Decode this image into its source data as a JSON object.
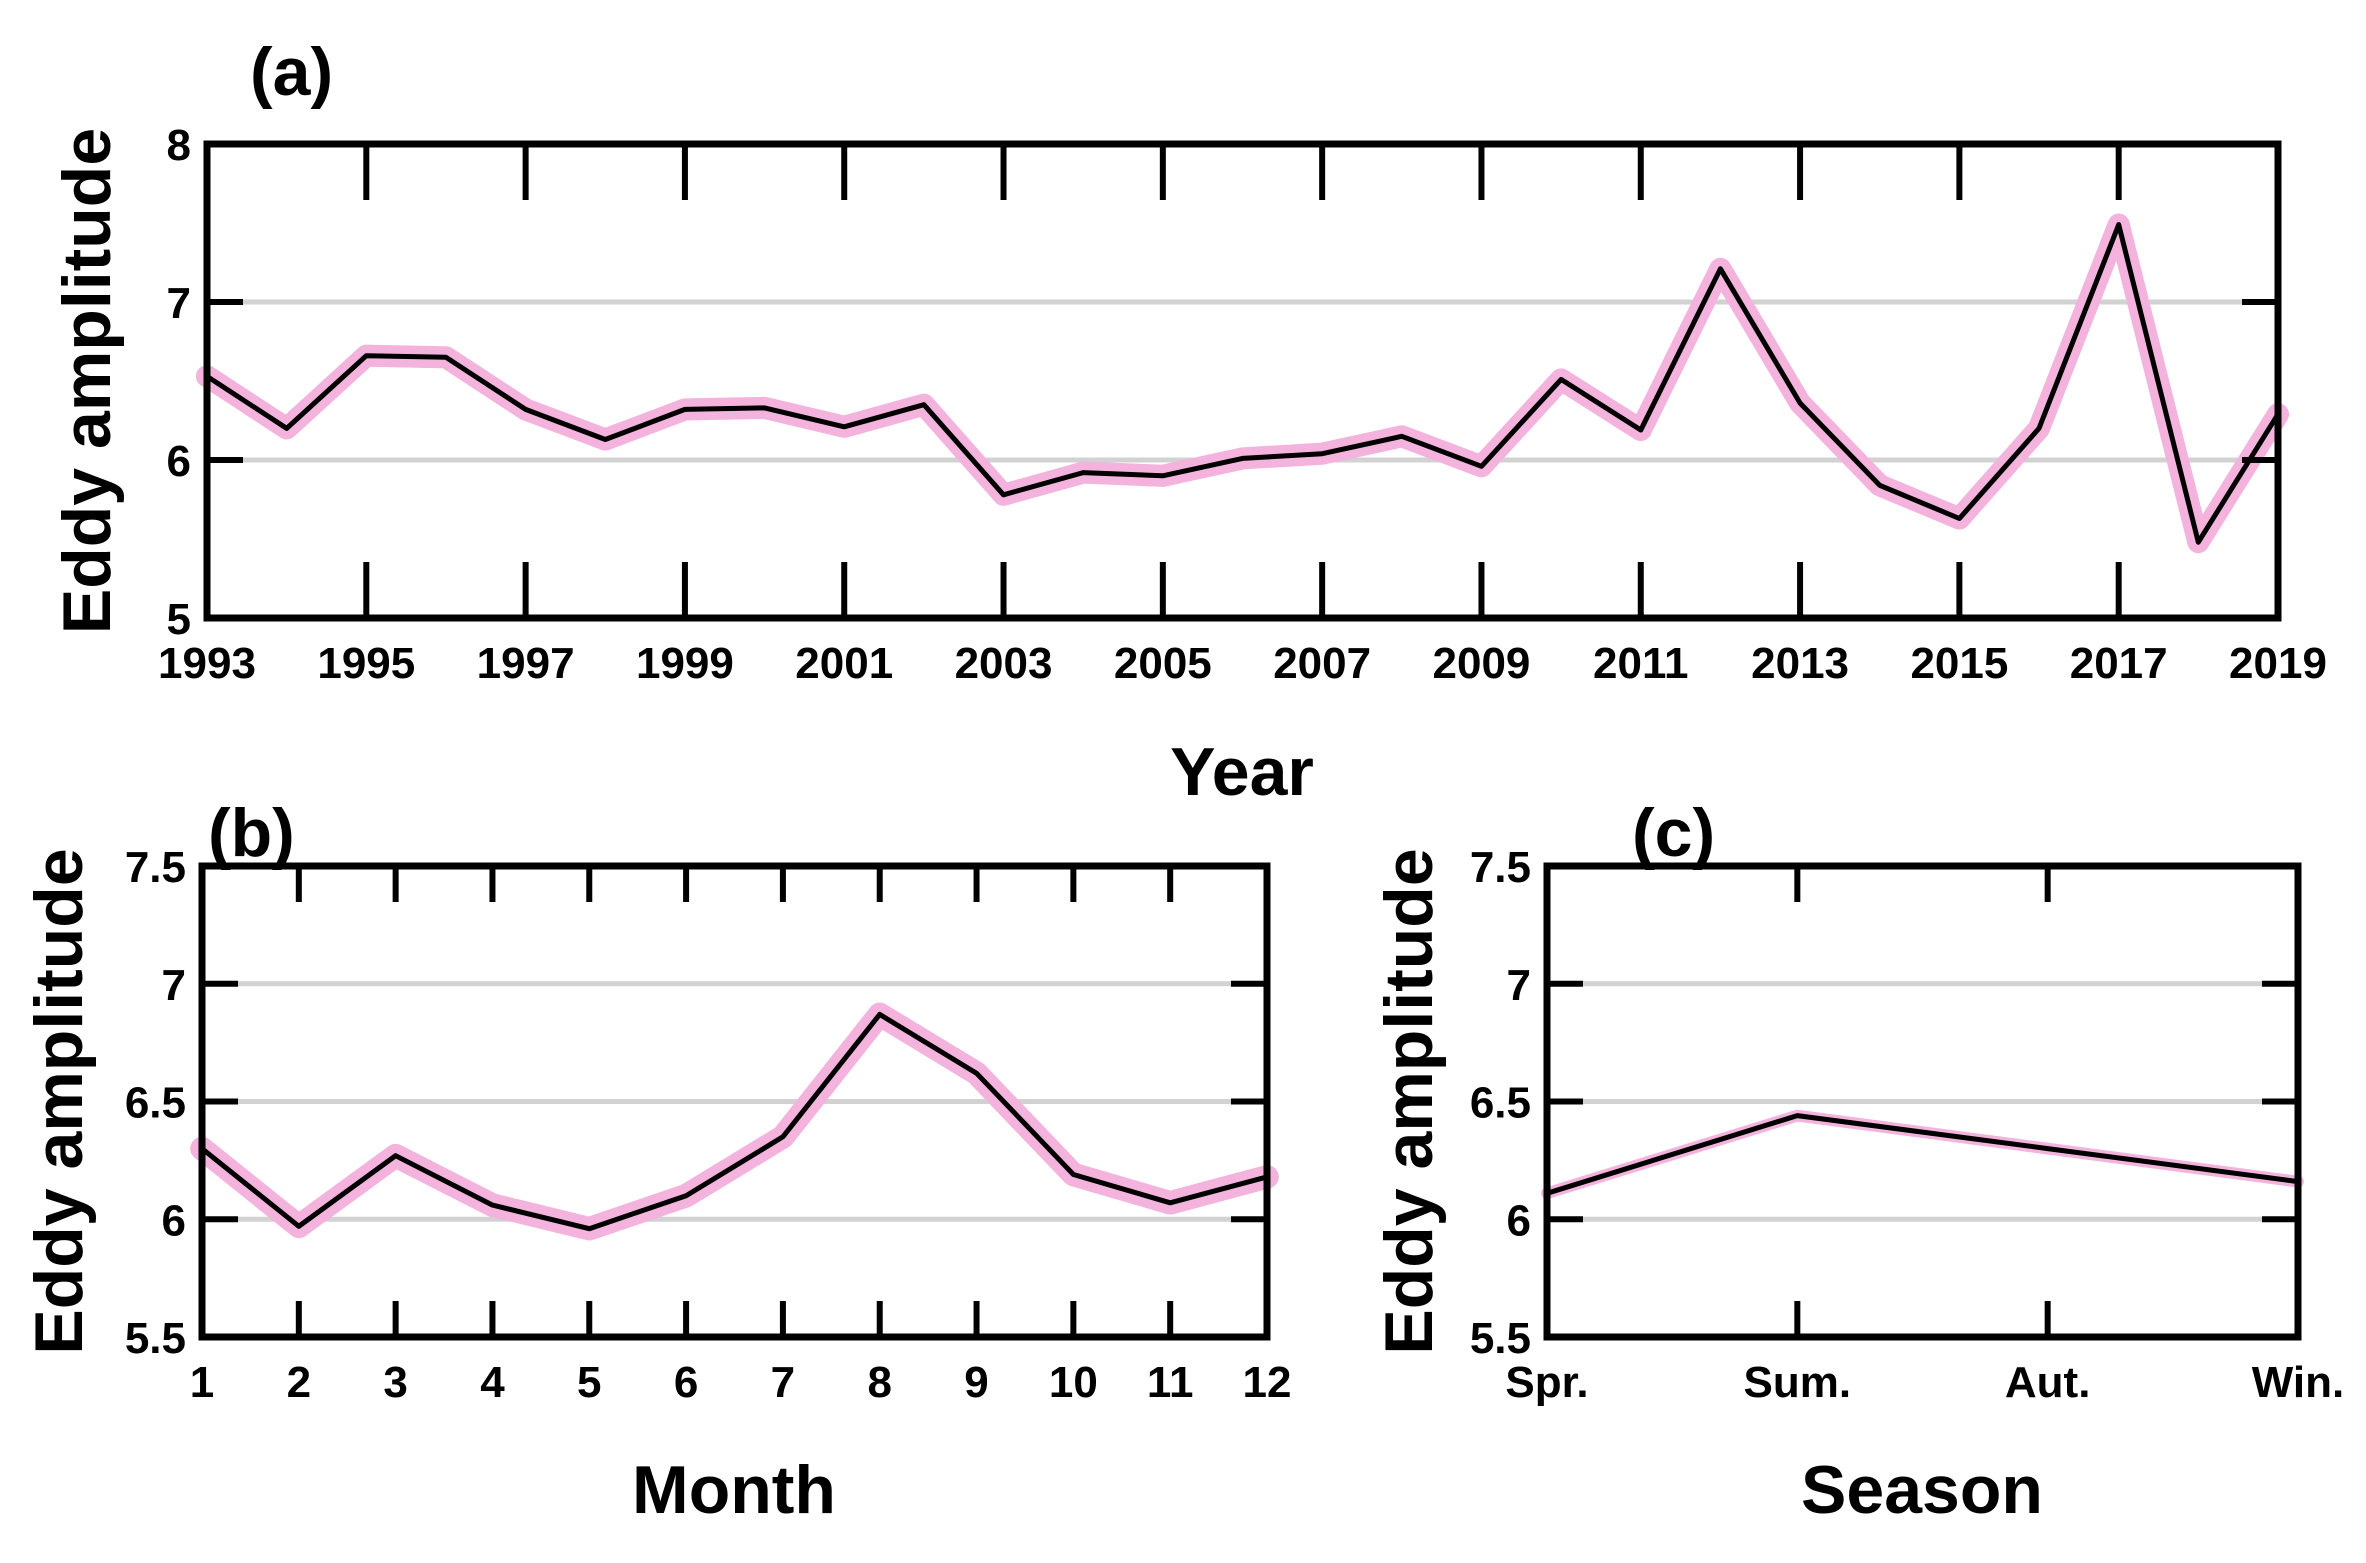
{
  "chart_data": [
    {
      "id": "a",
      "type": "line",
      "panel_label": "(a)",
      "xlabel": "Year",
      "ylabel": "Eddy amplitude",
      "xlim": [
        1993,
        2019
      ],
      "ylim": [
        5,
        8
      ],
      "xticks": [
        1993,
        1995,
        1997,
        1999,
        2001,
        2003,
        2005,
        2007,
        2009,
        2011,
        2013,
        2015,
        2017,
        2019
      ],
      "xtick_labels": [
        "1993",
        "1995",
        "1997",
        "1999",
        "2001",
        "2003",
        "2005",
        "2007",
        "2009",
        "2011",
        "2013",
        "2015",
        "2017",
        "2019"
      ],
      "yticks": [
        5,
        6,
        7,
        8
      ],
      "ytick_labels": [
        "5",
        "6",
        "7",
        "8"
      ],
      "grid_y": [
        6,
        7
      ],
      "x": [
        1993,
        1994,
        1995,
        1996,
        1997,
        1998,
        1999,
        2000,
        2001,
        2002,
        2003,
        2004,
        2005,
        2006,
        2007,
        2008,
        2009,
        2010,
        2011,
        2012,
        2013,
        2014,
        2015,
        2016,
        2017,
        2018,
        2019
      ],
      "values": [
        6.53,
        6.2,
        6.66,
        6.65,
        6.32,
        6.13,
        6.32,
        6.33,
        6.21,
        6.35,
        5.78,
        5.92,
        5.9,
        6.01,
        6.04,
        6.15,
        5.96,
        6.51,
        6.19,
        7.21,
        6.36,
        5.84,
        5.63,
        6.2,
        7.49,
        5.48,
        6.29
      ],
      "band_halfwidth": 0.07,
      "line_color": "#000000",
      "band_color": "#f3b3dd"
    },
    {
      "id": "b",
      "type": "line",
      "panel_label": "(b)",
      "xlabel": "Month",
      "ylabel": "Eddy amplitude",
      "xlim": [
        1,
        12
      ],
      "ylim": [
        5.5,
        7.5
      ],
      "xticks": [
        1,
        2,
        3,
        4,
        5,
        6,
        7,
        8,
        9,
        10,
        11,
        12
      ],
      "xtick_labels": [
        "1",
        "2",
        "3",
        "4",
        "5",
        "6",
        "7",
        "8",
        "9",
        "10",
        "11",
        "12"
      ],
      "yticks": [
        5.5,
        6,
        6.5,
        7,
        7.5
      ],
      "ytick_labels": [
        "5.5",
        "6",
        "6.5",
        "7",
        "7.5"
      ],
      "grid_y": [
        6,
        6.5,
        7
      ],
      "x": [
        1,
        2,
        3,
        4,
        5,
        6,
        7,
        8,
        9,
        10,
        11,
        12
      ],
      "values": [
        6.3,
        5.97,
        6.27,
        6.06,
        5.96,
        6.1,
        6.35,
        6.87,
        6.62,
        6.19,
        6.07,
        6.18
      ],
      "band_halfwidth": 0.05,
      "line_color": "#000000",
      "band_color": "#f3b3dd"
    },
    {
      "id": "c",
      "type": "line",
      "panel_label": "(c)",
      "xlabel": "Season",
      "ylabel": "Eddy amplitude",
      "xlim": [
        1,
        4
      ],
      "ylim": [
        5.5,
        7.5
      ],
      "xticks": [
        1,
        2,
        3,
        4
      ],
      "xtick_labels": [
        "Spr.",
        "Sum.",
        "Aut.",
        "Win."
      ],
      "yticks": [
        5.5,
        6,
        6.5,
        7,
        7.5
      ],
      "ytick_labels": [
        "5.5",
        "6",
        "6.5",
        "7",
        "7.5"
      ],
      "grid_y": [
        6,
        6.5,
        7
      ],
      "x": [
        1,
        2,
        3,
        4
      ],
      "values": [
        6.11,
        6.44,
        6.3,
        6.16
      ],
      "band_halfwidth": 0.025,
      "line_color": "#000000",
      "band_color": "#f3b3dd"
    }
  ]
}
